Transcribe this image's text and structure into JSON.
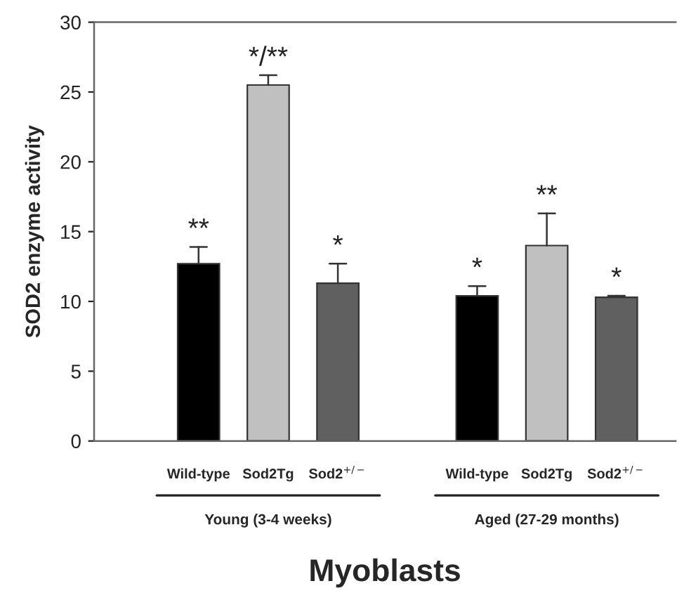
{
  "chart_data": {
    "type": "bar",
    "categories": [
      "Wild-type",
      "Sod2Tg",
      "Sod2$^{+/−}$",
      null,
      "Wild-type",
      "Sod2Tg",
      "Sod2$^{+/−}$"
    ],
    "values": [
      12.7,
      25.5,
      11.3,
      null,
      10.4,
      14.0,
      10.3
    ],
    "colors": [
      "#000000",
      "#c0c0c0",
      "#606060",
      "#ffffff",
      "#000000",
      "#c0c0c0",
      "#606060"
    ],
    "errors": [
      [
        12.7,
        13.9
      ],
      [
        25.5,
        26.2
      ],
      [
        11.3,
        12.7
      ],
      null,
      [
        10.4,
        11.1
      ],
      [
        14.0,
        16.3
      ],
      [
        10.3,
        10.4
      ]
    ],
    "value_labels": [
      "**",
      "*/**",
      "*",
      null,
      "*",
      "**",
      "*"
    ],
    "ylabel": "SOD2 enzyme activity",
    "xlabel": "Myoblasts",
    "annotations": [
      "Young (3-4 weeks)",
      "Aged (27-29 months)"
    ],
    "ylim": [
      0,
      30
    ],
    "yticks": [
      0,
      5,
      10,
      15,
      20,
      25,
      30
    ],
    "grid": false,
    "legend": false
  }
}
